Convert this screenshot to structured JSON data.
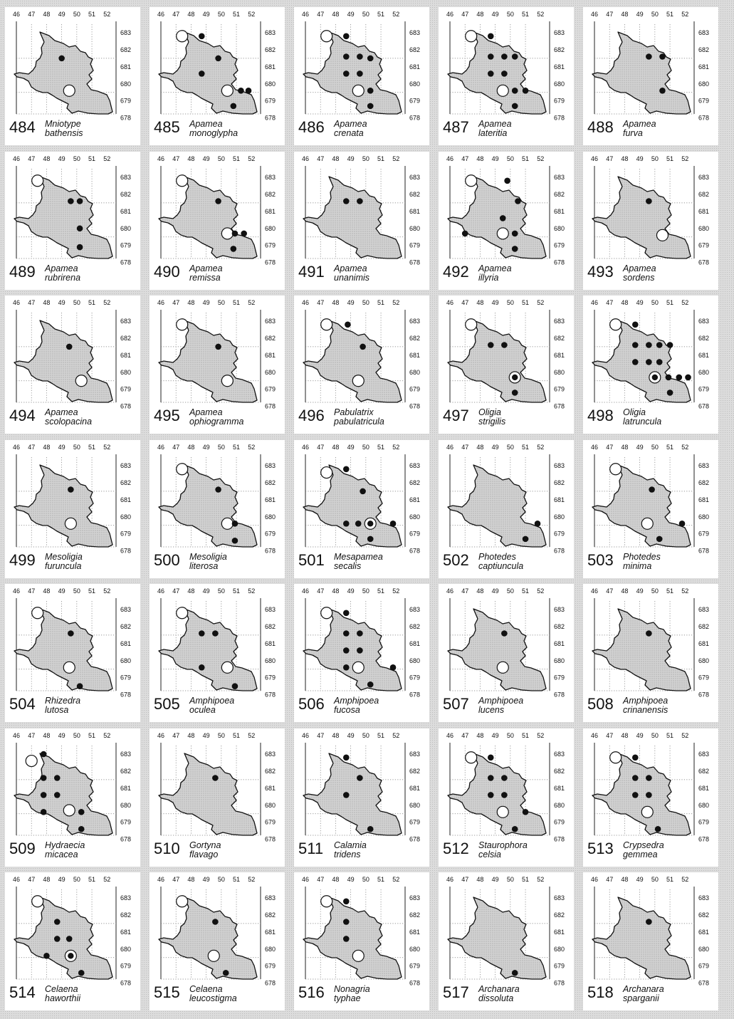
{
  "page": {
    "easting_labels": [
      "46",
      "47",
      "48",
      "49",
      "50",
      "51",
      "52"
    ],
    "northing_labels": [
      "683",
      "682",
      "681",
      "680",
      "679",
      "678"
    ],
    "symbol_colors": {
      "recent": "#111111",
      "old": "#ffffff",
      "county": "#c9c9c9"
    }
  },
  "maps": [
    {
      "num": "484",
      "genus": "Mniotype",
      "species": "bathensis",
      "dots": [
        [
          49,
          681.5
        ]
      ],
      "circles": [
        [
          49.5,
          679.6
        ]
      ],
      "both": []
    },
    {
      "num": "485",
      "genus": "Apamea",
      "species": "monoglypha",
      "dots": [
        [
          48.7,
          682.8
        ],
        [
          49.8,
          681.5
        ],
        [
          48.7,
          680.6
        ],
        [
          51.3,
          679.6
        ],
        [
          51.8,
          679.6
        ],
        [
          50.8,
          678.7
        ]
      ],
      "circles": [
        [
          47.4,
          682.8
        ],
        [
          50.4,
          679.6
        ]
      ],
      "both": []
    },
    {
      "num": "486",
      "genus": "Apamea",
      "species": "crenata",
      "dots": [
        [
          48.7,
          682.8
        ],
        [
          48.7,
          681.6
        ],
        [
          49.6,
          681.6
        ],
        [
          50.3,
          681.5
        ],
        [
          48.7,
          680.6
        ],
        [
          49.6,
          680.6
        ],
        [
          50.3,
          679.6
        ],
        [
          50.3,
          678.7
        ]
      ],
      "circles": [
        [
          47.4,
          682.8
        ],
        [
          49.5,
          679.6
        ]
      ],
      "both": []
    },
    {
      "num": "487",
      "genus": "Apamea",
      "species": "lateritia",
      "dots": [
        [
          48.7,
          682.8
        ],
        [
          48.7,
          681.6
        ],
        [
          49.6,
          681.6
        ],
        [
          50.3,
          681.6
        ],
        [
          48.7,
          680.6
        ],
        [
          49.6,
          680.6
        ],
        [
          50.3,
          679.6
        ],
        [
          51.0,
          679.6
        ],
        [
          50.3,
          678.7
        ]
      ],
      "circles": [
        [
          47.4,
          682.8
        ],
        [
          49.5,
          679.6
        ]
      ],
      "both": []
    },
    {
      "num": "488",
      "genus": "Apamea",
      "species": "furva",
      "dots": [
        [
          49.6,
          681.6
        ],
        [
          50.5,
          681.6
        ],
        [
          50.5,
          679.6
        ]
      ],
      "circles": [],
      "both": []
    },
    {
      "num": "489",
      "genus": "Apamea",
      "species": "rubrirena",
      "dots": [
        [
          49.6,
          681.6
        ],
        [
          50.2,
          681.6
        ],
        [
          50.2,
          680.0
        ],
        [
          50.2,
          678.9
        ]
      ],
      "circles": [
        [
          47.4,
          682.8
        ]
      ],
      "both": []
    },
    {
      "num": "490",
      "genus": "Apamea",
      "species": "remissa",
      "dots": [
        [
          49.8,
          681.6
        ],
        [
          50.9,
          679.7
        ],
        [
          51.5,
          679.7
        ],
        [
          50.8,
          678.8
        ]
      ],
      "circles": [
        [
          47.4,
          682.8
        ],
        [
          50.4,
          679.7
        ]
      ],
      "both": []
    },
    {
      "num": "491",
      "genus": "Apamea",
      "species": "unanimis",
      "dots": [
        [
          48.7,
          681.6
        ],
        [
          49.6,
          681.6
        ]
      ],
      "circles": [],
      "both": []
    },
    {
      "num": "492",
      "genus": "Apamea",
      "species": "illyria",
      "dots": [
        [
          49.8,
          682.8
        ],
        [
          50.5,
          681.6
        ],
        [
          49.5,
          680.6
        ],
        [
          47.0,
          679.7
        ],
        [
          50.3,
          679.7
        ],
        [
          50.3,
          678.8
        ]
      ],
      "circles": [
        [
          47.4,
          682.8
        ],
        [
          49.5,
          679.7
        ]
      ],
      "both": []
    },
    {
      "num": "493",
      "genus": "Apamea",
      "species": "sordens",
      "dots": [
        [
          49.6,
          681.6
        ]
      ],
      "circles": [
        [
          50.5,
          679.6
        ]
      ],
      "both": []
    },
    {
      "num": "494",
      "genus": "Apamea",
      "species": "scolopacina",
      "dots": [
        [
          49.5,
          681.5
        ]
      ],
      "circles": [
        [
          50.3,
          679.5
        ]
      ],
      "both": []
    },
    {
      "num": "495",
      "genus": "Apamea",
      "species": "ophiogramma",
      "dots": [
        [
          49.8,
          681.5
        ]
      ],
      "circles": [
        [
          47.4,
          682.8
        ],
        [
          50.4,
          679.5
        ]
      ],
      "both": []
    },
    {
      "num": "496",
      "genus": "Pabulatrix",
      "species": "pabulatricula",
      "dots": [
        [
          48.8,
          682.8
        ],
        [
          49.8,
          681.5
        ]
      ],
      "circles": [
        [
          47.4,
          682.8
        ],
        [
          49.5,
          679.5
        ]
      ],
      "both": []
    },
    {
      "num": "497",
      "genus": "Oligia",
      "species": "strigilis",
      "dots": [
        [
          48.7,
          681.6
        ],
        [
          49.6,
          681.6
        ],
        [
          50.3,
          678.8
        ]
      ],
      "circles": [
        [
          47.4,
          682.8
        ]
      ],
      "both": [
        [
          50.3,
          679.7
        ]
      ]
    },
    {
      "num": "498",
      "genus": "Oligia",
      "species": "latruncula",
      "dots": [
        [
          48.7,
          682.8
        ],
        [
          48.7,
          681.6
        ],
        [
          49.6,
          681.6
        ],
        [
          50.3,
          681.6
        ],
        [
          51.0,
          681.6
        ],
        [
          48.7,
          680.6
        ],
        [
          49.6,
          680.6
        ],
        [
          50.3,
          680.6
        ],
        [
          50.9,
          679.7
        ],
        [
          51.6,
          679.7
        ],
        [
          52.2,
          679.7
        ],
        [
          51.0,
          678.8
        ]
      ],
      "circles": [
        [
          47.4,
          682.8
        ]
      ],
      "both": [
        [
          50.0,
          679.7
        ]
      ]
    },
    {
      "num": "499",
      "genus": "Mesoligia",
      "species": "furuncula",
      "dots": [
        [
          49.6,
          681.6
        ]
      ],
      "circles": [
        [
          49.6,
          679.6
        ]
      ],
      "both": []
    },
    {
      "num": "500",
      "genus": "Mesoligia",
      "species": "literosa",
      "dots": [
        [
          49.8,
          681.6
        ],
        [
          50.9,
          679.6
        ],
        [
          50.9,
          678.6
        ]
      ],
      "circles": [
        [
          47.4,
          682.8
        ],
        [
          50.4,
          679.6
        ]
      ],
      "both": []
    },
    {
      "num": "501",
      "genus": "Mesapamea",
      "species": "secalis",
      "dots": [
        [
          48.7,
          682.8
        ],
        [
          49.8,
          681.5
        ],
        [
          48.7,
          679.6
        ],
        [
          49.5,
          679.6
        ],
        [
          51.8,
          679.6
        ],
        [
          50.3,
          678.7
        ]
      ],
      "circles": [
        [
          47.4,
          682.6
        ]
      ],
      "both": [
        [
          50.3,
          679.6
        ]
      ]
    },
    {
      "num": "502",
      "genus": "Photedes",
      "species": "captiuncula",
      "dots": [
        [
          51.8,
          679.6
        ],
        [
          51.0,
          678.7
        ]
      ],
      "circles": [],
      "both": []
    },
    {
      "num": "503",
      "genus": "Photedes",
      "species": "minima",
      "dots": [
        [
          49.8,
          681.6
        ],
        [
          51.8,
          679.6
        ],
        [
          50.3,
          678.7
        ]
      ],
      "circles": [
        [
          47.4,
          682.8
        ],
        [
          49.5,
          679.6
        ]
      ],
      "both": []
    },
    {
      "num": "504",
      "genus": "Rhizedra",
      "species": "lutosa",
      "dots": [
        [
          49.6,
          681.6
        ],
        [
          50.2,
          678.5
        ]
      ],
      "circles": [
        [
          47.4,
          682.8
        ],
        [
          49.5,
          679.6
        ]
      ],
      "both": []
    },
    {
      "num": "505",
      "genus": "Amphipoea",
      "species": "oculea",
      "dots": [
        [
          48.7,
          681.6
        ],
        [
          49.6,
          681.6
        ],
        [
          48.7,
          679.6
        ],
        [
          50.9,
          678.5
        ]
      ],
      "circles": [
        [
          47.4,
          682.8
        ],
        [
          50.4,
          679.6
        ]
      ],
      "both": []
    },
    {
      "num": "506",
      "genus": "Amphipoea",
      "species": "fucosa",
      "dots": [
        [
          48.7,
          682.8
        ],
        [
          48.7,
          681.6
        ],
        [
          49.6,
          681.6
        ],
        [
          48.7,
          680.6
        ],
        [
          49.6,
          680.6
        ],
        [
          48.7,
          679.6
        ],
        [
          51.8,
          679.6
        ],
        [
          50.3,
          678.6
        ]
      ],
      "circles": [
        [
          47.4,
          682.8
        ],
        [
          49.5,
          679.6
        ]
      ],
      "both": []
    },
    {
      "num": "507",
      "genus": "Amphipoea",
      "species": "lucens",
      "dots": [
        [
          49.6,
          681.6
        ]
      ],
      "circles": [
        [
          49.5,
          679.6
        ]
      ],
      "both": []
    },
    {
      "num": "508",
      "genus": "Amphipoea",
      "species": "crinanensis",
      "dots": [
        [
          49.6,
          681.6
        ]
      ],
      "circles": [],
      "both": []
    },
    {
      "num": "509",
      "genus": "Hydraecia",
      "species": "micacea",
      "dots": [
        [
          47.8,
          683.0
        ],
        [
          47.8,
          681.6
        ],
        [
          48.7,
          681.6
        ],
        [
          47.8,
          680.6
        ],
        [
          48.7,
          680.6
        ],
        [
          47.8,
          679.6
        ],
        [
          50.3,
          679.6
        ],
        [
          50.3,
          678.6
        ]
      ],
      "circles": [
        [
          47.0,
          682.6
        ],
        [
          49.5,
          679.7
        ]
      ],
      "both": []
    },
    {
      "num": "510",
      "genus": "Gortyna",
      "species": "flavago",
      "dots": [
        [
          49.6,
          681.6
        ]
      ],
      "circles": [],
      "both": []
    },
    {
      "num": "511",
      "genus": "Calamia",
      "species": "tridens",
      "dots": [
        [
          48.7,
          682.8
        ],
        [
          49.6,
          681.6
        ],
        [
          48.7,
          680.6
        ],
        [
          50.3,
          678.6
        ]
      ],
      "circles": [],
      "both": []
    },
    {
      "num": "512",
      "genus": "Staurophora",
      "species": "celsia",
      "dots": [
        [
          48.7,
          682.8
        ],
        [
          48.7,
          681.6
        ],
        [
          49.6,
          681.6
        ],
        [
          48.7,
          680.6
        ],
        [
          49.6,
          680.6
        ],
        [
          51.0,
          679.6
        ],
        [
          50.3,
          678.6
        ]
      ],
      "circles": [
        [
          47.4,
          682.8
        ],
        [
          49.5,
          679.6
        ]
      ],
      "both": []
    },
    {
      "num": "513",
      "genus": "Crypsedra",
      "species": "gemmea",
      "dots": [
        [
          48.7,
          682.8
        ],
        [
          48.7,
          681.6
        ],
        [
          49.6,
          681.6
        ],
        [
          48.7,
          680.6
        ],
        [
          49.6,
          680.6
        ],
        [
          50.2,
          678.6
        ]
      ],
      "circles": [
        [
          47.4,
          682.8
        ],
        [
          49.5,
          679.6
        ]
      ],
      "both": []
    },
    {
      "num": "514",
      "genus": "Celaena",
      "species": "haworthii",
      "dots": [
        [
          48.7,
          681.6
        ],
        [
          48.7,
          680.6
        ],
        [
          49.5,
          680.6
        ],
        [
          48.0,
          679.6
        ],
        [
          50.3,
          678.6
        ]
      ],
      "circles": [
        [
          47.4,
          682.8
        ]
      ],
      "both": [
        [
          49.6,
          679.6
        ]
      ]
    },
    {
      "num": "515",
      "genus": "Celaena",
      "species": "leucostigma",
      "dots": [
        [
          49.6,
          681.6
        ],
        [
          50.3,
          678.6
        ]
      ],
      "circles": [
        [
          47.4,
          682.8
        ],
        [
          49.5,
          679.6
        ]
      ],
      "both": []
    },
    {
      "num": "516",
      "genus": "Nonagria",
      "species": "typhae",
      "dots": [
        [
          48.7,
          682.8
        ],
        [
          48.7,
          681.6
        ],
        [
          48.7,
          680.6
        ]
      ],
      "circles": [
        [
          47.4,
          682.8
        ],
        [
          49.5,
          679.6
        ]
      ],
      "both": []
    },
    {
      "num": "517",
      "genus": "Archanara",
      "species": "dissoluta",
      "dots": [
        [
          50.3,
          678.6
        ]
      ],
      "circles": [],
      "both": []
    },
    {
      "num": "518",
      "genus": "Archanara",
      "species": "sparganii",
      "dots": [
        [
          49.6,
          681.6
        ]
      ],
      "circles": [],
      "both": []
    }
  ]
}
